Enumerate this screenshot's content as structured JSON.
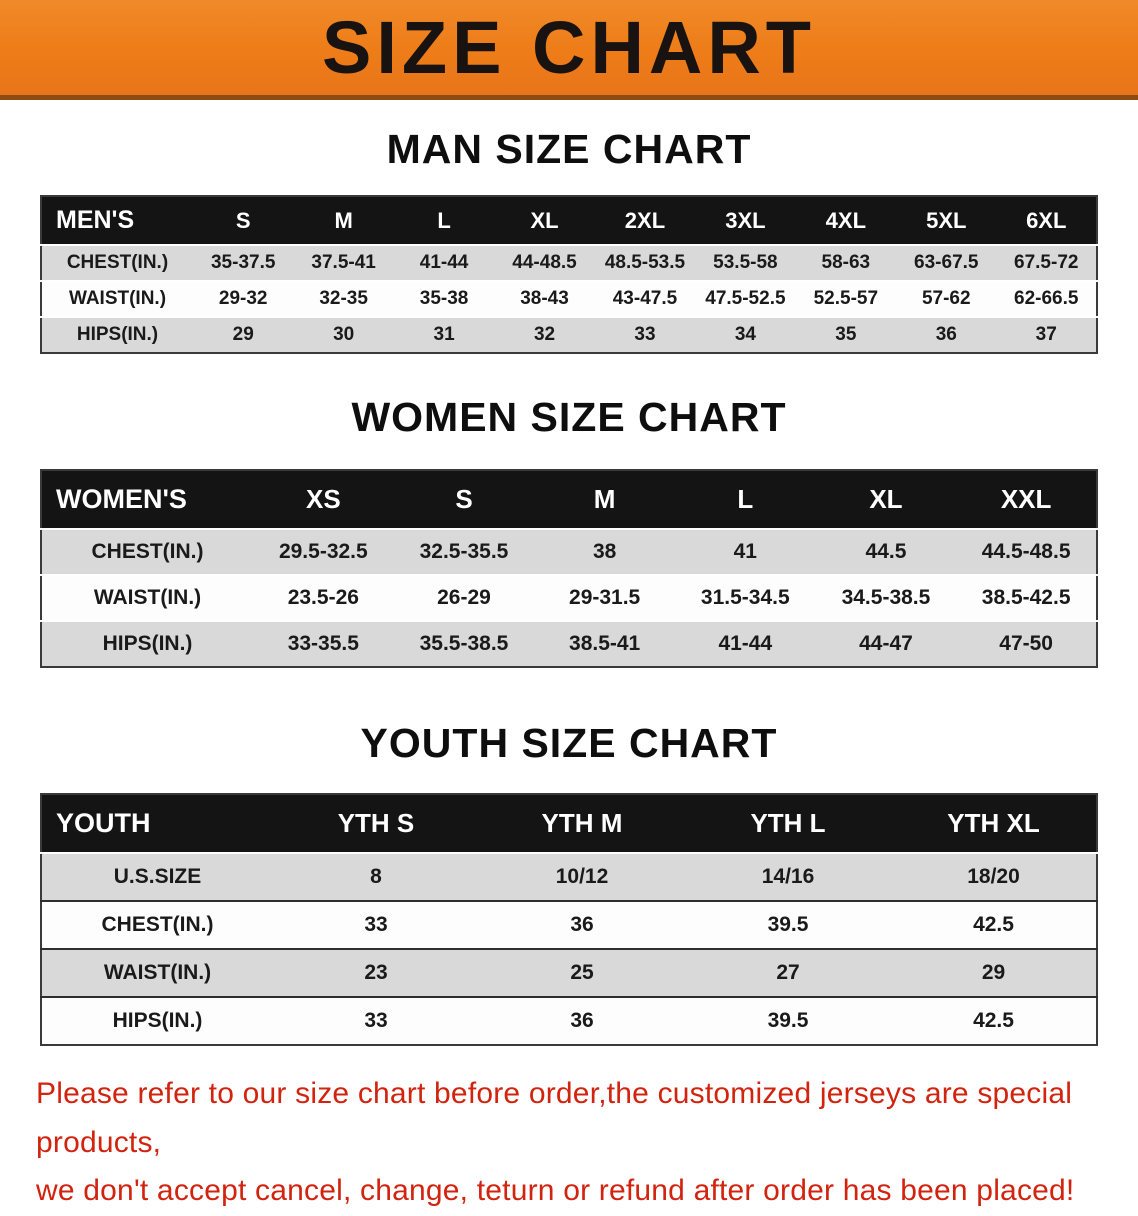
{
  "banner": {
    "title": "SIZE CHART",
    "background_color": "#ee7c18",
    "text_color": "#181210"
  },
  "sections": [
    {
      "id": "men",
      "title": "MAN SIZE CHART",
      "table": {
        "header": [
          "MEN'S",
          "S",
          "M",
          "L",
          "XL",
          "2XL",
          "3XL",
          "4XL",
          "5XL",
          "6XL"
        ],
        "rows": [
          {
            "label": "CHEST(IN.)",
            "values": [
              "35-37.5",
              "37.5-41",
              "41-44",
              "44-48.5",
              "48.5-53.5",
              "53.5-58",
              "58-63",
              "63-67.5",
              "67.5-72"
            ]
          },
          {
            "label": "WAIST(IN.)",
            "values": [
              "29-32",
              "32-35",
              "35-38",
              "38-43",
              "43-47.5",
              "47.5-52.5",
              "52.5-57",
              "57-62",
              "62-66.5"
            ]
          },
          {
            "label": "HIPS(IN.)",
            "values": [
              "29",
              "30",
              "31",
              "32",
              "33",
              "34",
              "35",
              "36",
              "37"
            ]
          }
        ]
      }
    },
    {
      "id": "women",
      "title": "WOMEN SIZE CHART",
      "table": {
        "header": [
          "WOMEN'S",
          "XS",
          "S",
          "M",
          "L",
          "XL",
          "XXL"
        ],
        "rows": [
          {
            "label": "CHEST(IN.)",
            "values": [
              "29.5-32.5",
              "32.5-35.5",
              "38",
              "41",
              "44.5",
              "44.5-48.5"
            ]
          },
          {
            "label": "WAIST(IN.)",
            "values": [
              "23.5-26",
              "26-29",
              "29-31.5",
              "31.5-34.5",
              "34.5-38.5",
              "38.5-42.5"
            ]
          },
          {
            "label": "HIPS(IN.)",
            "values": [
              "33-35.5",
              "35.5-38.5",
              "38.5-41",
              "41-44",
              "44-47",
              "47-50"
            ]
          }
        ]
      }
    },
    {
      "id": "youth",
      "title": "YOUTH SIZE CHART",
      "table": {
        "header": [
          "YOUTH",
          "YTH S",
          "YTH M",
          "YTH L",
          "YTH XL"
        ],
        "rows": [
          {
            "label": "U.S.SIZE",
            "values": [
              "8",
              "10/12",
              "14/16",
              "18/20"
            ]
          },
          {
            "label": "CHEST(IN.)",
            "values": [
              "33",
              "36",
              "39.5",
              "42.5"
            ]
          },
          {
            "label": "WAIST(IN.)",
            "values": [
              "23",
              "25",
              "27",
              "29"
            ]
          },
          {
            "label": "HIPS(IN.)",
            "values": [
              "33",
              "36",
              "39.5",
              "42.5"
            ]
          }
        ]
      }
    }
  ],
  "footer": {
    "lines": [
      "Please refer to our size chart before order,the customized jerseys are special products,",
      "we don't accept cancel, change, teturn or refund after order has been placed!"
    ],
    "text_color": "#d2230f"
  },
  "colors": {
    "table_header_bg": "#141414",
    "table_header_text": "#ffffff",
    "stripe_row_bg": "#d9d9d9",
    "plain_row_bg": "#fdfdfd"
  }
}
